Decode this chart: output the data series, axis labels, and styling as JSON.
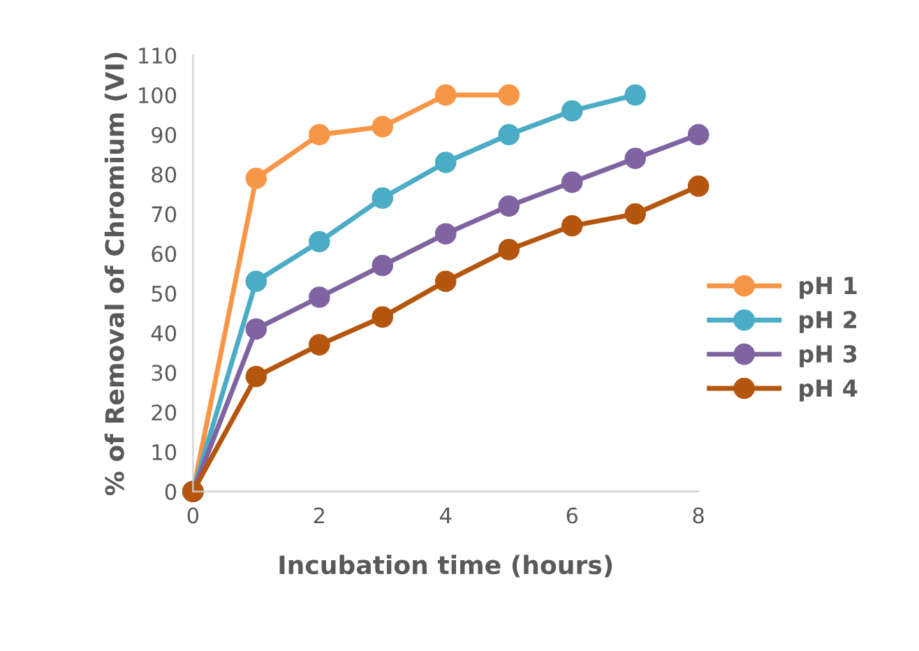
{
  "chart_data": {
    "type": "line",
    "xlabel": "Incubation time (hours)",
    "ylabel": "% of Removal of Chromium (VI)",
    "x": [
      0,
      1,
      2,
      3,
      4,
      5,
      6,
      7,
      8
    ],
    "series": [
      {
        "name": "pH 1",
        "color": "#f79646",
        "x": [
          0,
          1,
          2,
          3,
          4,
          5
        ],
        "values": [
          0,
          79,
          90,
          92,
          100,
          100
        ]
      },
      {
        "name": "pH 2",
        "color": "#4bacc6",
        "x": [
          0,
          1,
          2,
          3,
          4,
          5,
          6,
          7
        ],
        "values": [
          0,
          53,
          63,
          74,
          83,
          90,
          96,
          100
        ]
      },
      {
        "name": "pH 3",
        "color": "#8064a2",
        "values": [
          0,
          41,
          49,
          57,
          65,
          72,
          78,
          84,
          90
        ]
      },
      {
        "name": "pH 4",
        "color": "#b5560f",
        "values": [
          0,
          29,
          37,
          44,
          53,
          61,
          67,
          70,
          77
        ]
      }
    ],
    "xlim": [
      0,
      8
    ],
    "xticks": [
      0,
      2,
      4,
      6,
      8
    ],
    "ylim": [
      0,
      110
    ],
    "yticks": [
      0,
      10,
      20,
      30,
      40,
      50,
      60,
      70,
      80,
      90,
      100,
      110
    ],
    "marker": "circle",
    "line_style": "solid",
    "grid": false,
    "legend": "right"
  }
}
